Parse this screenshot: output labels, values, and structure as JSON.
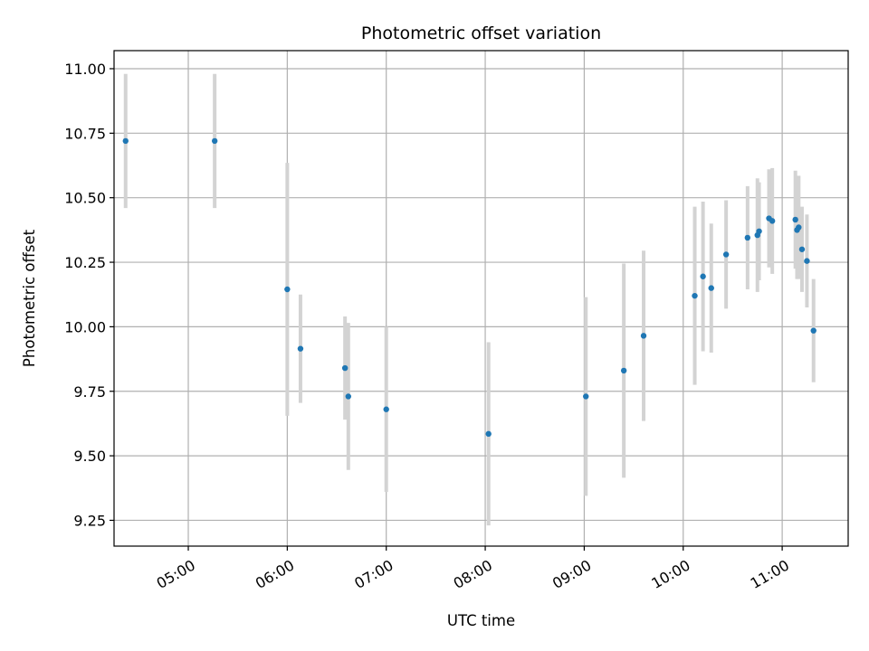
{
  "chart_data": {
    "type": "scatter",
    "title": "Photometric offset variation",
    "xlabel": "UTC time",
    "ylabel": "Photometric offset",
    "x_axis": {
      "kind": "time",
      "range": [
        "04:15",
        "11:40"
      ],
      "ticks": [
        "05:00",
        "06:00",
        "07:00",
        "08:00",
        "09:00",
        "10:00",
        "11:00"
      ]
    },
    "y_axis": {
      "range": [
        9.15,
        11.07
      ],
      "ticks": [
        9.25,
        9.5,
        9.75,
        10.0,
        10.25,
        10.5,
        10.75,
        11.0
      ],
      "tick_labels": [
        "9.25",
        "9.50",
        "9.75",
        "10.00",
        "10.25",
        "10.50",
        "10.75",
        "11.00"
      ]
    },
    "grid": true,
    "colors": {
      "point": "#1f77b4",
      "errorbar": "#d3d3d3",
      "grid": "#b0b0b0"
    },
    "series": [
      {
        "points": [
          {
            "t": "04:22",
            "y": 10.72,
            "err": 0.26
          },
          {
            "t": "05:16",
            "y": 10.72,
            "err": 0.26
          },
          {
            "t": "06:00",
            "y": 10.145,
            "err": 0.49
          },
          {
            "t": "06:08",
            "y": 9.915,
            "err": 0.21
          },
          {
            "t": "06:35",
            "y": 9.84,
            "err": 0.2
          },
          {
            "t": "06:37",
            "y": 9.73,
            "err": 0.285
          },
          {
            "t": "07:00",
            "y": 9.68,
            "err": 0.32
          },
          {
            "t": "08:02",
            "y": 9.585,
            "err": 0.355
          },
          {
            "t": "09:01",
            "y": 9.73,
            "err": 0.385
          },
          {
            "t": "09:24",
            "y": 9.83,
            "err": 0.415
          },
          {
            "t": "09:36",
            "y": 9.965,
            "err": 0.33
          },
          {
            "t": "10:07",
            "y": 10.12,
            "err": 0.345
          },
          {
            "t": "10:12",
            "y": 10.195,
            "err": 0.29
          },
          {
            "t": "10:17",
            "y": 10.15,
            "err": 0.25
          },
          {
            "t": "10:26",
            "y": 10.28,
            "err": 0.21
          },
          {
            "t": "10:39",
            "y": 10.345,
            "err": 0.2
          },
          {
            "t": "10:45",
            "y": 10.355,
            "err": 0.22
          },
          {
            "t": "10:46",
            "y": 10.37,
            "err": 0.19
          },
          {
            "t": "10:52",
            "y": 10.42,
            "err": 0.19
          },
          {
            "t": "10:54",
            "y": 10.41,
            "err": 0.205
          },
          {
            "t": "11:08",
            "y": 10.415,
            "err": 0.19
          },
          {
            "t": "11:09",
            "y": 10.375,
            "err": 0.19
          },
          {
            "t": "11:10",
            "y": 10.385,
            "err": 0.2
          },
          {
            "t": "11:12",
            "y": 10.3,
            "err": 0.165
          },
          {
            "t": "11:15",
            "y": 10.255,
            "err": 0.18
          },
          {
            "t": "11:19",
            "y": 9.985,
            "err": 0.2
          }
        ]
      }
    ]
  }
}
